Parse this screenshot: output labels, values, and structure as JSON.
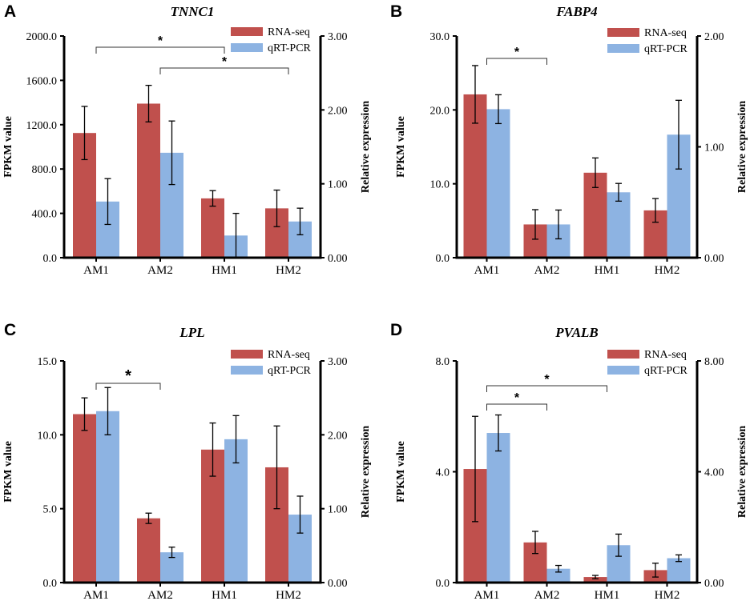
{
  "colors": {
    "rna": "#c0504d",
    "qrt": "#8db3e2"
  },
  "chart_data": [
    {
      "type": "bar",
      "panel": "A",
      "title": "TNNC1",
      "categories": [
        "AM1",
        "AM2",
        "HM1",
        "HM2"
      ],
      "ylabel": "FPKM value",
      "y2label": "Relative expression",
      "ylim": [
        0,
        2000
      ],
      "y2lim": [
        0,
        3
      ],
      "yticks": [
        "0.0",
        "400.0",
        "800.0",
        "1200.0",
        "1600.0",
        "2000.0"
      ],
      "y2ticks": [
        "0.00",
        "1.00",
        "2.00",
        "3.00"
      ],
      "series": [
        {
          "name": "RNA-seq",
          "axis": "left",
          "values": [
            1125,
            1390,
            535,
            445
          ],
          "errors": [
            240,
            165,
            70,
            165
          ]
        },
        {
          "name": "qRT-PCR",
          "axis": "right",
          "values": [
            0.76,
            1.42,
            0.3,
            0.49
          ],
          "errors": [
            0.31,
            0.43,
            0.3,
            0.18
          ]
        }
      ],
      "significance": [
        {
          "from": 0,
          "to": 2,
          "label": "*"
        },
        {
          "from": 1,
          "to": 3,
          "label": "*"
        }
      ]
    },
    {
      "type": "bar",
      "panel": "B",
      "title": "FABP4",
      "categories": [
        "AM1",
        "AM2",
        "HM1",
        "HM2"
      ],
      "ylabel": "FPKM value",
      "y2label": "Relative expression",
      "ylim": [
        0,
        30
      ],
      "y2lim": [
        0,
        2
      ],
      "yticks": [
        "0.0",
        "10.0",
        "20.0",
        "30.0"
      ],
      "y2ticks": [
        "0.00",
        "1.00",
        "2.00"
      ],
      "series": [
        {
          "name": "RNA-seq",
          "axis": "left",
          "values": [
            22.1,
            4.5,
            11.5,
            6.4
          ],
          "errors": [
            3.9,
            2.0,
            2.0,
            1.6
          ]
        },
        {
          "name": "qRT-PCR",
          "axis": "right",
          "values": [
            1.34,
            0.3,
            0.59,
            1.11
          ],
          "errors": [
            0.13,
            0.13,
            0.08,
            0.31
          ]
        }
      ],
      "significance": [
        {
          "from": 0,
          "to": 1,
          "label": "*"
        }
      ]
    },
    {
      "type": "bar",
      "panel": "C",
      "title": "LPL",
      "categories": [
        "AM1",
        "AM2",
        "HM1",
        "HM2"
      ],
      "ylabel": "FPKM value",
      "y2label": "Relative expression",
      "ylim": [
        0,
        15
      ],
      "y2lim": [
        0,
        3
      ],
      "yticks": [
        "0.0",
        "5.0",
        "10.0",
        "15.0"
      ],
      "y2ticks": [
        "0.00",
        "1.00",
        "2.00",
        "3.00"
      ],
      "series": [
        {
          "name": "RNA-seq",
          "axis": "left",
          "values": [
            11.4,
            4.35,
            9.0,
            7.8
          ],
          "errors": [
            1.1,
            0.35,
            1.8,
            2.8
          ]
        },
        {
          "name": "qRT-PCR",
          "axis": "right",
          "values": [
            2.32,
            0.41,
            1.94,
            0.92
          ],
          "errors": [
            0.32,
            0.07,
            0.32,
            0.25
          ]
        }
      ],
      "significance": [
        {
          "from": 0,
          "to": 1,
          "label": "*"
        }
      ]
    },
    {
      "type": "bar",
      "panel": "D",
      "title": "PVALB",
      "categories": [
        "AM1",
        "AM2",
        "HM1",
        "HM2"
      ],
      "ylabel": "FPKM value",
      "y2label": "Relative expression",
      "ylim": [
        0,
        8
      ],
      "y2lim": [
        0,
        8
      ],
      "yticks": [
        "0.0",
        "4.0",
        "8.0"
      ],
      "y2ticks": [
        "0.00",
        "4.00",
        "8.00"
      ],
      "series": [
        {
          "name": "RNA-seq",
          "axis": "left",
          "values": [
            4.1,
            1.45,
            0.2,
            0.45
          ],
          "errors": [
            1.9,
            0.4,
            0.06,
            0.25
          ]
        },
        {
          "name": "qRT-PCR",
          "axis": "right",
          "values": [
            5.4,
            0.5,
            1.35,
            0.88
          ],
          "errors": [
            0.65,
            0.12,
            0.4,
            0.12
          ]
        }
      ],
      "significance": [
        {
          "from": 0,
          "to": 1,
          "label": "*"
        },
        {
          "from": 0,
          "to": 2,
          "label": "*"
        }
      ]
    }
  ]
}
